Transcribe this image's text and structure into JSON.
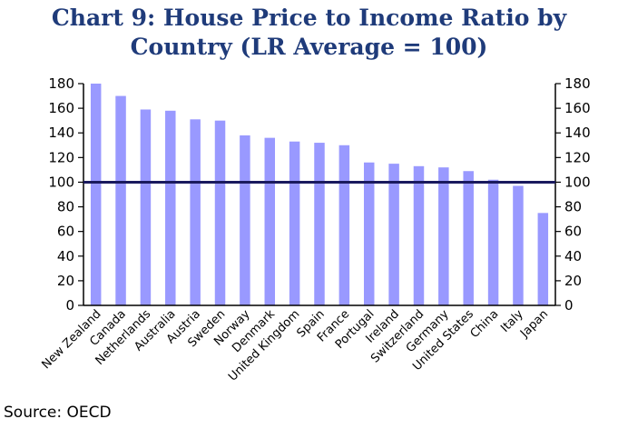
{
  "chart_data": {
    "type": "bar",
    "title": "Chart 9: House Price to Income Ratio by Country (LR Average = 100)",
    "xlabel": "",
    "ylabel": "",
    "categories": [
      "New Zealand",
      "Canada",
      "Netherlands",
      "Australia",
      "Austria",
      "Sweden",
      "Norway",
      "Denmark",
      "United Kingdom",
      "Spain",
      "France",
      "Portugal",
      "Ireland",
      "Switzerland",
      "Germany",
      "United States",
      "China",
      "Italy",
      "Japan"
    ],
    "values": [
      180,
      170,
      159,
      158,
      151,
      150,
      138,
      136,
      133,
      132,
      130,
      116,
      115,
      113,
      112,
      109,
      102,
      97,
      75
    ],
    "ylim": [
      0,
      180
    ],
    "yticks": [
      0,
      20,
      40,
      60,
      80,
      100,
      120,
      140,
      160,
      180
    ],
    "reference_line": 100,
    "grid": false,
    "bar_color": "#9999ff",
    "reference_line_color": "#1a1a5e"
  },
  "source": "Source: OECD"
}
